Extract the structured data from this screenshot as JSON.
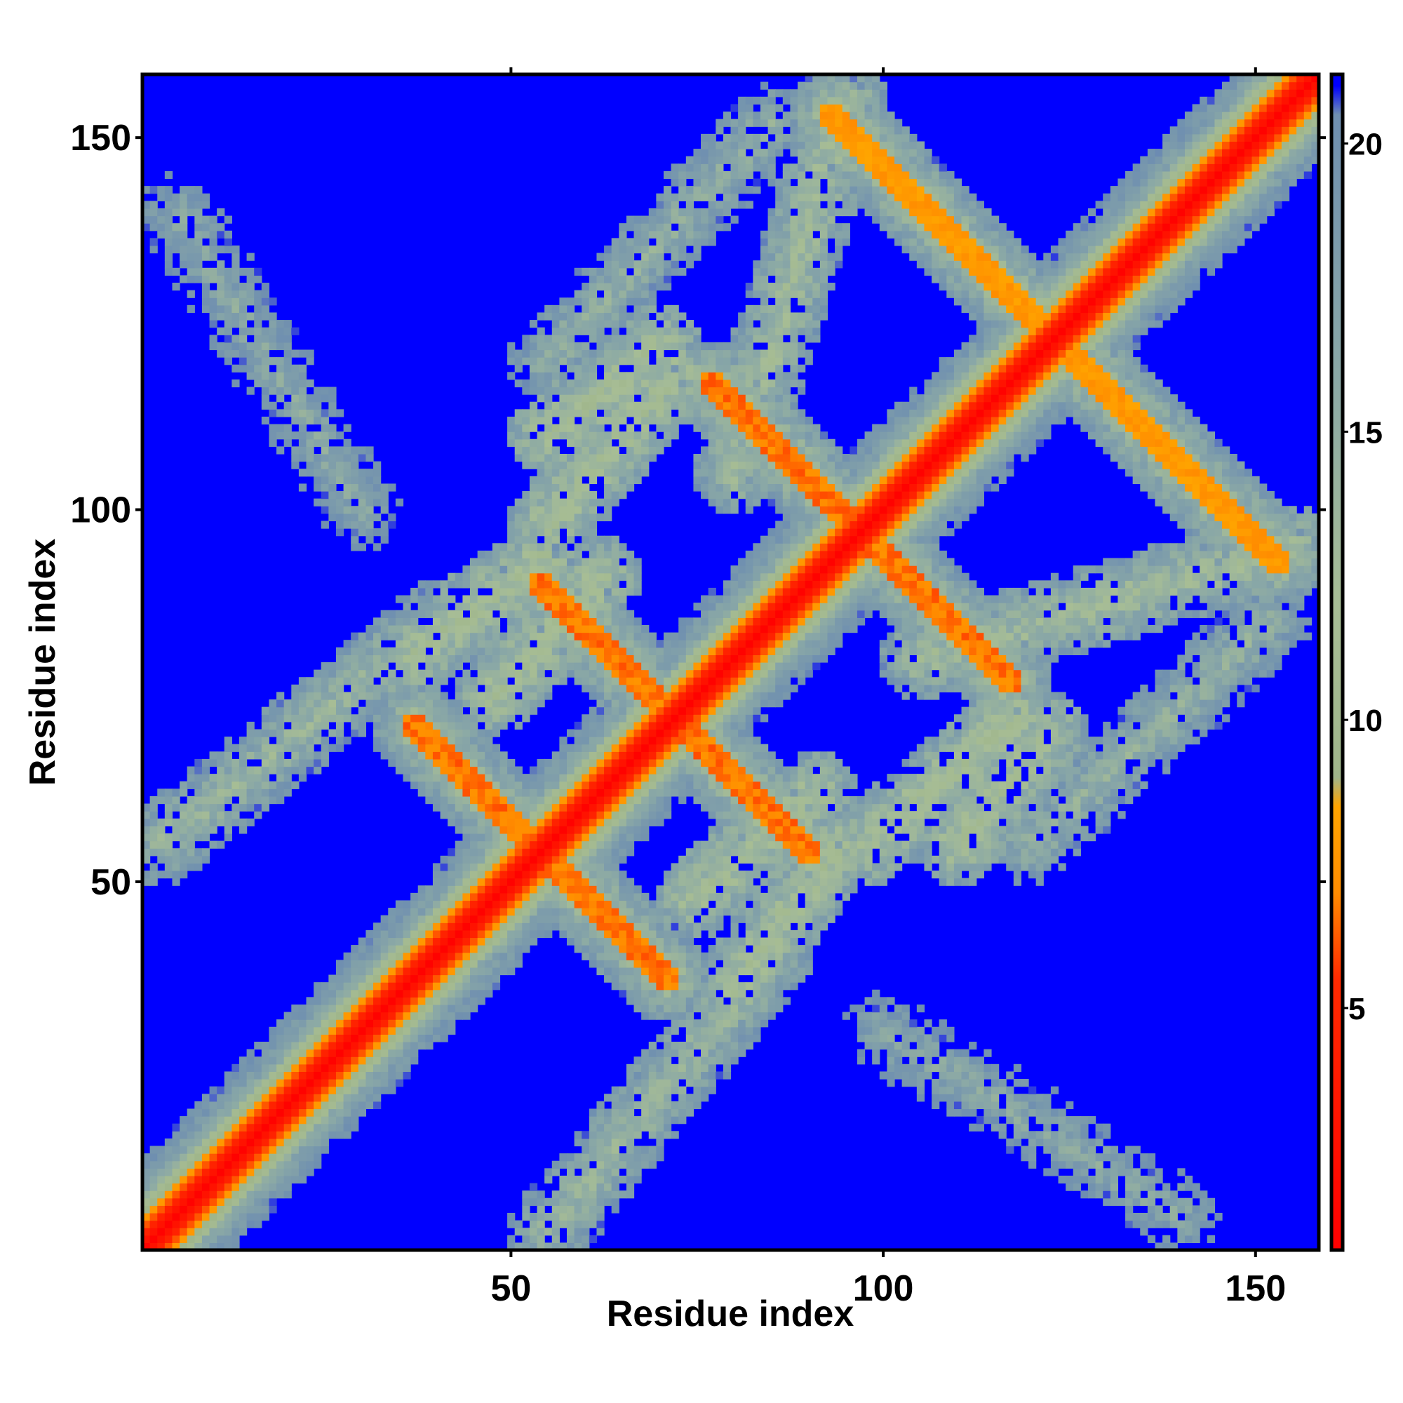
{
  "chart_data": {
    "type": "heatmap",
    "title": "",
    "xlabel": "Residue index",
    "ylabel": "Residue index",
    "x_range": [
      1,
      158
    ],
    "y_range": [
      1,
      158
    ],
    "x_ticks": [
      50,
      100,
      150
    ],
    "y_ticks": [
      50,
      100,
      150
    ],
    "colorbar": {
      "ticks": [
        5,
        10,
        15,
        20
      ],
      "range": [
        0.8,
        21.2
      ],
      "stops": [
        {
          "value": 0.8,
          "color": "#ff0000"
        },
        {
          "value": 5.5,
          "color": "#ff2a00"
        },
        {
          "value": 7.0,
          "color": "#ff8c00"
        },
        {
          "value": 8.5,
          "color": "#ffa500"
        },
        {
          "value": 9.0,
          "color": "#9fb58a"
        },
        {
          "value": 12.0,
          "color": "#a7bd95"
        },
        {
          "value": 16.0,
          "color": "#8aa8a6"
        },
        {
          "value": 20.5,
          "color": "#6f8fb0"
        },
        {
          "value": 21.0,
          "color": "#0000ff"
        },
        {
          "value": 21.2,
          "color": "#0000ff"
        }
      ]
    },
    "matrix_description": "residue-residue distance map (Angstrom), values capped at ~21",
    "features": [
      {
        "kind": "diagonal",
        "from": [
          1,
          1
        ],
        "to": [
          158,
          158
        ],
        "value": 1.5
      },
      {
        "kind": "antiparallel-pair",
        "center": [
          54,
          54
        ],
        "half_length": 17,
        "value": 6
      },
      {
        "kind": "antiparallel-pair",
        "center": [
          72,
          72
        ],
        "half_length": 18,
        "value": 6
      },
      {
        "kind": "antiparallel-pair",
        "center": [
          97,
          97
        ],
        "half_length": 20,
        "value": 6
      },
      {
        "kind": "antiparallel-pair",
        "center": [
          123,
          123
        ],
        "half_length": 30,
        "value": 7
      },
      {
        "kind": "parallel-band",
        "from": [
          36,
          80
        ],
        "to": [
          55,
          94
        ],
        "value": 11
      },
      {
        "kind": "parallel-band",
        "from": [
          55,
          110
        ],
        "to": [
          70,
          122
        ],
        "value": 11
      },
      {
        "kind": "parallel-band",
        "from": [
          75,
          48
        ],
        "to": [
          91,
          62
        ],
        "value": 11
      },
      {
        "kind": "parallel-band",
        "from": [
          98,
          55
        ],
        "to": [
          118,
          72
        ],
        "value": 11
      },
      {
        "kind": "parallel-band",
        "from": [
          80,
          105
        ],
        "to": [
          95,
          155
        ],
        "value": 12
      },
      {
        "kind": "parallel-band",
        "from": [
          3,
          55
        ],
        "to": [
          40,
          85
        ],
        "value": 13
      },
      {
        "kind": "parallel-band",
        "from": [
          100,
          30
        ],
        "to": [
          140,
          5
        ],
        "value": 15
      },
      {
        "kind": "parallel-band",
        "from": [
          120,
          55
        ],
        "to": [
          152,
          85
        ],
        "value": 14
      }
    ]
  }
}
